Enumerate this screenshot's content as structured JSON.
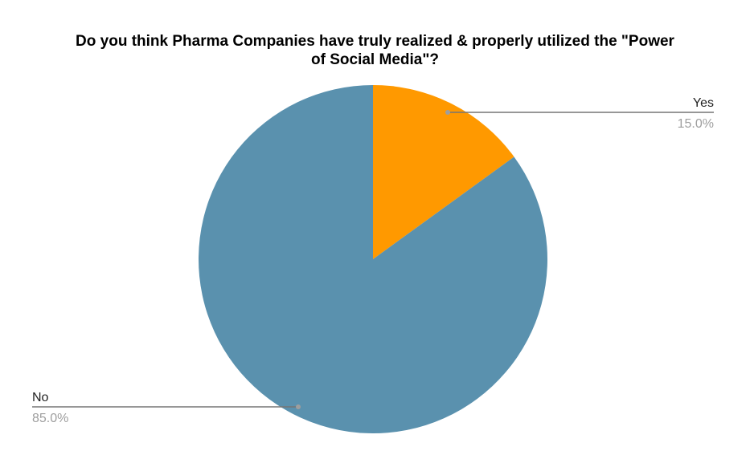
{
  "chart_data": {
    "type": "pie",
    "title_lines": [
      "Do you think Pharma Companies have truly realized & properly utilized the \"Power",
      "of Social Media\"?"
    ],
    "slices": [
      {
        "label": "Yes",
        "value": 15.0,
        "percent_label": "15.0%",
        "color": "#ff9900"
      },
      {
        "label": "No",
        "value": 85.0,
        "percent_label": "85.0%",
        "color": "#5a91ae"
      }
    ],
    "legend": "none",
    "leader_line_color": "#757575"
  }
}
